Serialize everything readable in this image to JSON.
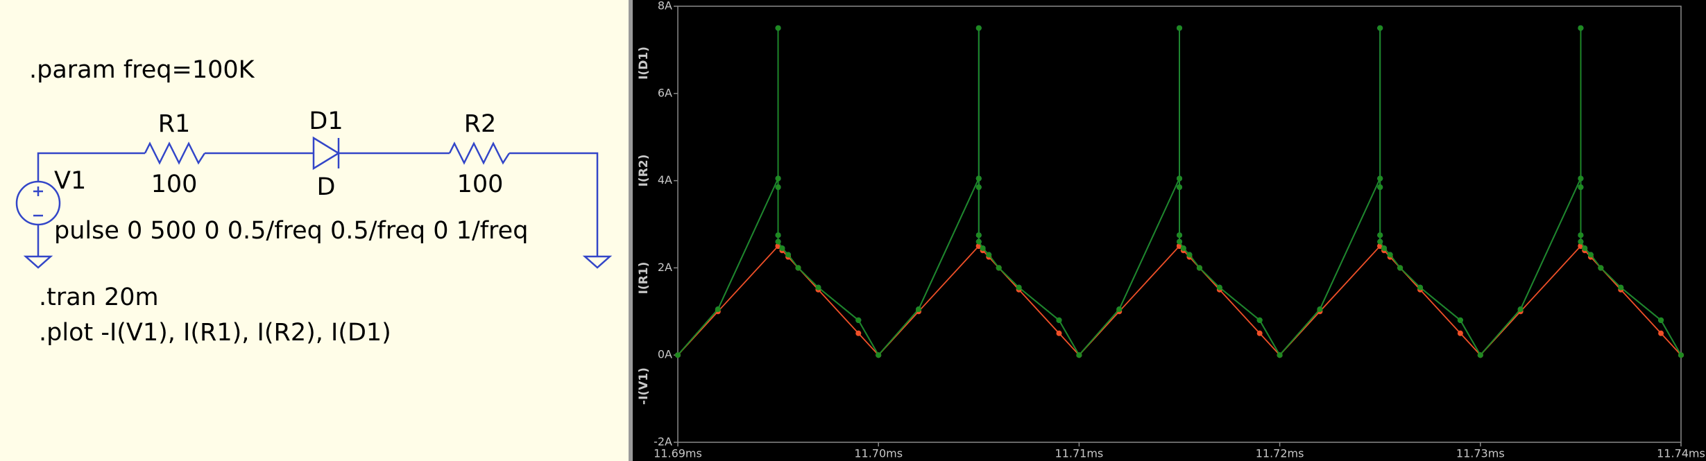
{
  "schematic": {
    "directive": ".param freq=100K",
    "components": [
      {
        "name": "R1",
        "value": "100"
      },
      {
        "name": "D1",
        "value": "D"
      },
      {
        "name": "R2",
        "value": "100"
      }
    ],
    "source": {
      "name": "V1",
      "value": "pulse 0 500 0 0.5/freq 0.5/freq 0 1/freq"
    },
    "commands": [
      ".tran 20m",
      ".plot -I(V1), I(R1), I(R2), I(D1)"
    ]
  },
  "chart_data": {
    "type": "line",
    "x": [
      11.69,
      11.692,
      11.695,
      11.695,
      11.695,
      11.695,
      11.695,
      11.6952,
      11.6955,
      11.696,
      11.697,
      11.699,
      11.7,
      11.702,
      11.705,
      11.705,
      11.705,
      11.705,
      11.705,
      11.7052,
      11.7055,
      11.706,
      11.707,
      11.709,
      11.71,
      11.712,
      11.715,
      11.715,
      11.715,
      11.715,
      11.715,
      11.7152,
      11.7155,
      11.716,
      11.717,
      11.719,
      11.72,
      11.722,
      11.725,
      11.725,
      11.725,
      11.725,
      11.725,
      11.7252,
      11.7255,
      11.726,
      11.727,
      11.729,
      11.73,
      11.732,
      11.735,
      11.735,
      11.735,
      11.735,
      11.735,
      11.7352,
      11.7355,
      11.736,
      11.737,
      11.739,
      11.74
    ],
    "series": [
      {
        "name": "-I(V1)",
        "color": "#22c422",
        "values": [
          0,
          1.05,
          4.05,
          7.5,
          3.85,
          2.75,
          2.6,
          2.45,
          2.3,
          2.0,
          1.55,
          0.8,
          0,
          1.05,
          4.05,
          7.5,
          3.85,
          2.75,
          2.6,
          2.45,
          2.3,
          2.0,
          1.55,
          0.8,
          0,
          1.05,
          4.05,
          7.5,
          3.85,
          2.75,
          2.6,
          2.45,
          2.3,
          2.0,
          1.55,
          0.8,
          0,
          1.05,
          4.05,
          7.5,
          3.85,
          2.75,
          2.6,
          2.45,
          2.3,
          2.0,
          1.55,
          0.8,
          0,
          1.05,
          4.05,
          7.5,
          3.85,
          2.75,
          2.6,
          2.45,
          2.3,
          2.0,
          1.55,
          0.8,
          0
        ]
      },
      {
        "name": "I(R1)",
        "color": "#2448ff",
        "values": [
          0,
          1.05,
          4.05,
          7.5,
          3.85,
          2.75,
          2.6,
          2.45,
          2.3,
          2.0,
          1.55,
          0.8,
          0,
          1.05,
          4.05,
          7.5,
          3.85,
          2.75,
          2.6,
          2.45,
          2.3,
          2.0,
          1.55,
          0.8,
          0,
          1.05,
          4.05,
          7.5,
          3.85,
          2.75,
          2.6,
          2.45,
          2.3,
          2.0,
          1.55,
          0.8,
          0,
          1.05,
          4.05,
          7.5,
          3.85,
          2.75,
          2.6,
          2.45,
          2.3,
          2.0,
          1.55,
          0.8,
          0,
          1.05,
          4.05,
          7.5,
          3.85,
          2.75,
          2.6,
          2.45,
          2.3,
          2.0,
          1.55,
          0.8,
          0
        ]
      },
      {
        "name": "I(R2)",
        "color": "#f05028",
        "values": [
          0,
          1.0,
          2.5,
          2.5,
          2.5,
          2.5,
          2.5,
          2.4,
          2.25,
          2.0,
          1.5,
          0.5,
          0,
          1.0,
          2.5,
          2.5,
          2.5,
          2.5,
          2.5,
          2.4,
          2.25,
          2.0,
          1.5,
          0.5,
          0,
          1.0,
          2.5,
          2.5,
          2.5,
          2.5,
          2.5,
          2.4,
          2.25,
          2.0,
          1.5,
          0.5,
          0,
          1.0,
          2.5,
          2.5,
          2.5,
          2.5,
          2.5,
          2.4,
          2.25,
          2.0,
          1.5,
          0.5,
          0,
          1.0,
          2.5,
          2.5,
          2.5,
          2.5,
          2.5,
          2.4,
          2.25,
          2.0,
          1.5,
          0.5,
          0
        ]
      },
      {
        "name": "I(D1)",
        "color": "#1f8a1f",
        "values": [
          0,
          1.05,
          4.05,
          7.5,
          3.85,
          2.75,
          2.6,
          2.45,
          2.3,
          2.0,
          1.55,
          0.8,
          0,
          1.05,
          4.05,
          7.5,
          3.85,
          2.75,
          2.6,
          2.45,
          2.3,
          2.0,
          1.55,
          0.8,
          0,
          1.05,
          4.05,
          7.5,
          3.85,
          2.75,
          2.6,
          2.45,
          2.3,
          2.0,
          1.55,
          0.8,
          0,
          1.05,
          4.05,
          7.5,
          3.85,
          2.75,
          2.6,
          2.45,
          2.3,
          2.0,
          1.55,
          0.8,
          0,
          1.05,
          4.05,
          7.5,
          3.85,
          2.75,
          2.6,
          2.45,
          2.3,
          2.0,
          1.55,
          0.8,
          0
        ]
      }
    ],
    "xlim": [
      11.69,
      11.74
    ],
    "xticks": [
      {
        "value": 11.69,
        "label": "11.69ms"
      },
      {
        "value": 11.7,
        "label": "11.70ms"
      },
      {
        "value": 11.71,
        "label": "11.71ms"
      },
      {
        "value": 11.72,
        "label": "11.72ms"
      },
      {
        "value": 11.73,
        "label": "11.73ms"
      },
      {
        "value": 11.74,
        "label": "11.74ms"
      }
    ],
    "ylim": [
      -2,
      8
    ],
    "yticks": [
      {
        "value": -2,
        "label": "-2A"
      },
      {
        "value": 0,
        "label": "0A"
      },
      {
        "value": 2,
        "label": "2A"
      },
      {
        "value": 4,
        "label": "4A"
      },
      {
        "value": 6,
        "label": "6A"
      },
      {
        "value": 8,
        "label": "8A"
      }
    ]
  }
}
